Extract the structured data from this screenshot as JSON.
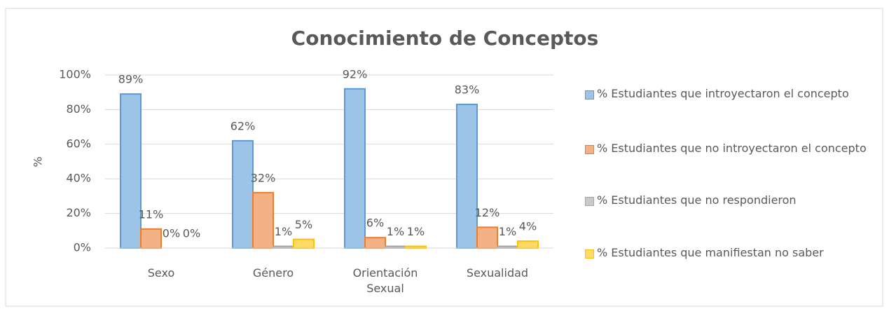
{
  "chart_data": {
    "type": "bar",
    "title": "Conocimiento de Conceptos",
    "y_label": "%",
    "categories": [
      "Sexo",
      "Género",
      "Orientación Sexual",
      "Sexualidad"
    ],
    "series": [
      {
        "name": "% Estudiantes que introyectaron el concepto",
        "color": "#9dc3e6",
        "stroke": "#5b9bd5",
        "values": [
          89,
          62,
          92,
          83
        ],
        "value_labels": [
          "89%",
          "62%",
          "92%",
          "83%"
        ]
      },
      {
        "name": "% Estudiantes que no introyectaron el concepto",
        "color": "#f4b183",
        "stroke": "#ed7d31",
        "values": [
          11,
          32,
          6,
          12
        ],
        "value_labels": [
          "11%",
          "32%",
          "6%",
          "12%"
        ]
      },
      {
        "name": "% Estudiantes que no respondieron",
        "color": "#c9c9c9",
        "stroke": "#a5a5a5",
        "values": [
          0,
          1,
          1,
          1
        ],
        "value_labels": [
          "0%",
          "1%",
          "1%",
          "1%"
        ]
      },
      {
        "name": "% Estudiantes que manifiestan no saber",
        "color": "#ffd966",
        "stroke": "#ffc000",
        "values": [
          0,
          5,
          1,
          4
        ],
        "value_labels": [
          "0%",
          "5%",
          "1%",
          "4%"
        ]
      }
    ],
    "ylim": [
      0,
      100
    ],
    "yticks": [
      {
        "value": 0,
        "label": "0%"
      },
      {
        "value": 20,
        "label": "20%"
      },
      {
        "value": 40,
        "label": "40%"
      },
      {
        "value": 60,
        "label": "60%"
      },
      {
        "value": 80,
        "label": "80%"
      },
      {
        "value": 100,
        "label": "100%"
      }
    ],
    "grid": true,
    "legend": "right"
  }
}
